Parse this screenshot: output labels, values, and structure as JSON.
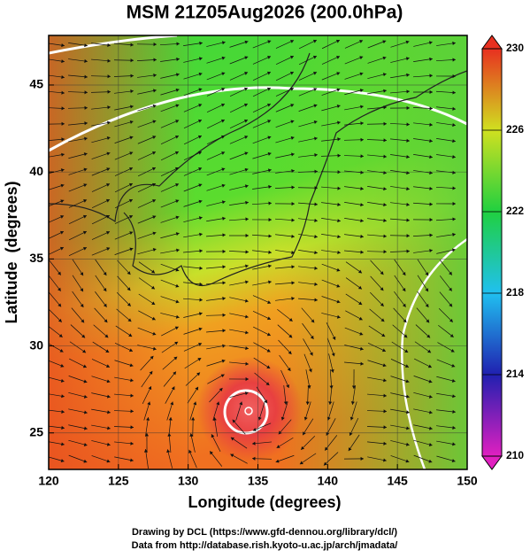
{
  "map": {
    "title": "MSM 21Z05Aug2026 (200.0hPa)",
    "x_label": "Longitude (degrees)",
    "y_label": "Latitude  (degrees)",
    "xlim": [
      120,
      150
    ],
    "ylim": [
      22.9,
      47.85
    ],
    "xticks": [
      120,
      125,
      130,
      135,
      140,
      145,
      150
    ],
    "yticks": [
      25,
      30,
      35,
      40,
      45
    ],
    "colorbar": {
      "lim": [
        210,
        230
      ],
      "ticks": [
        210,
        214,
        218,
        222,
        226,
        230
      ]
    },
    "footer": [
      "Drawing by DCL (https://www.gfd-dennou.org/library/dcl/)",
      "Data from http://database.rish.kyoto-u.ac.jp/arch/jmadata/"
    ]
  }
}
